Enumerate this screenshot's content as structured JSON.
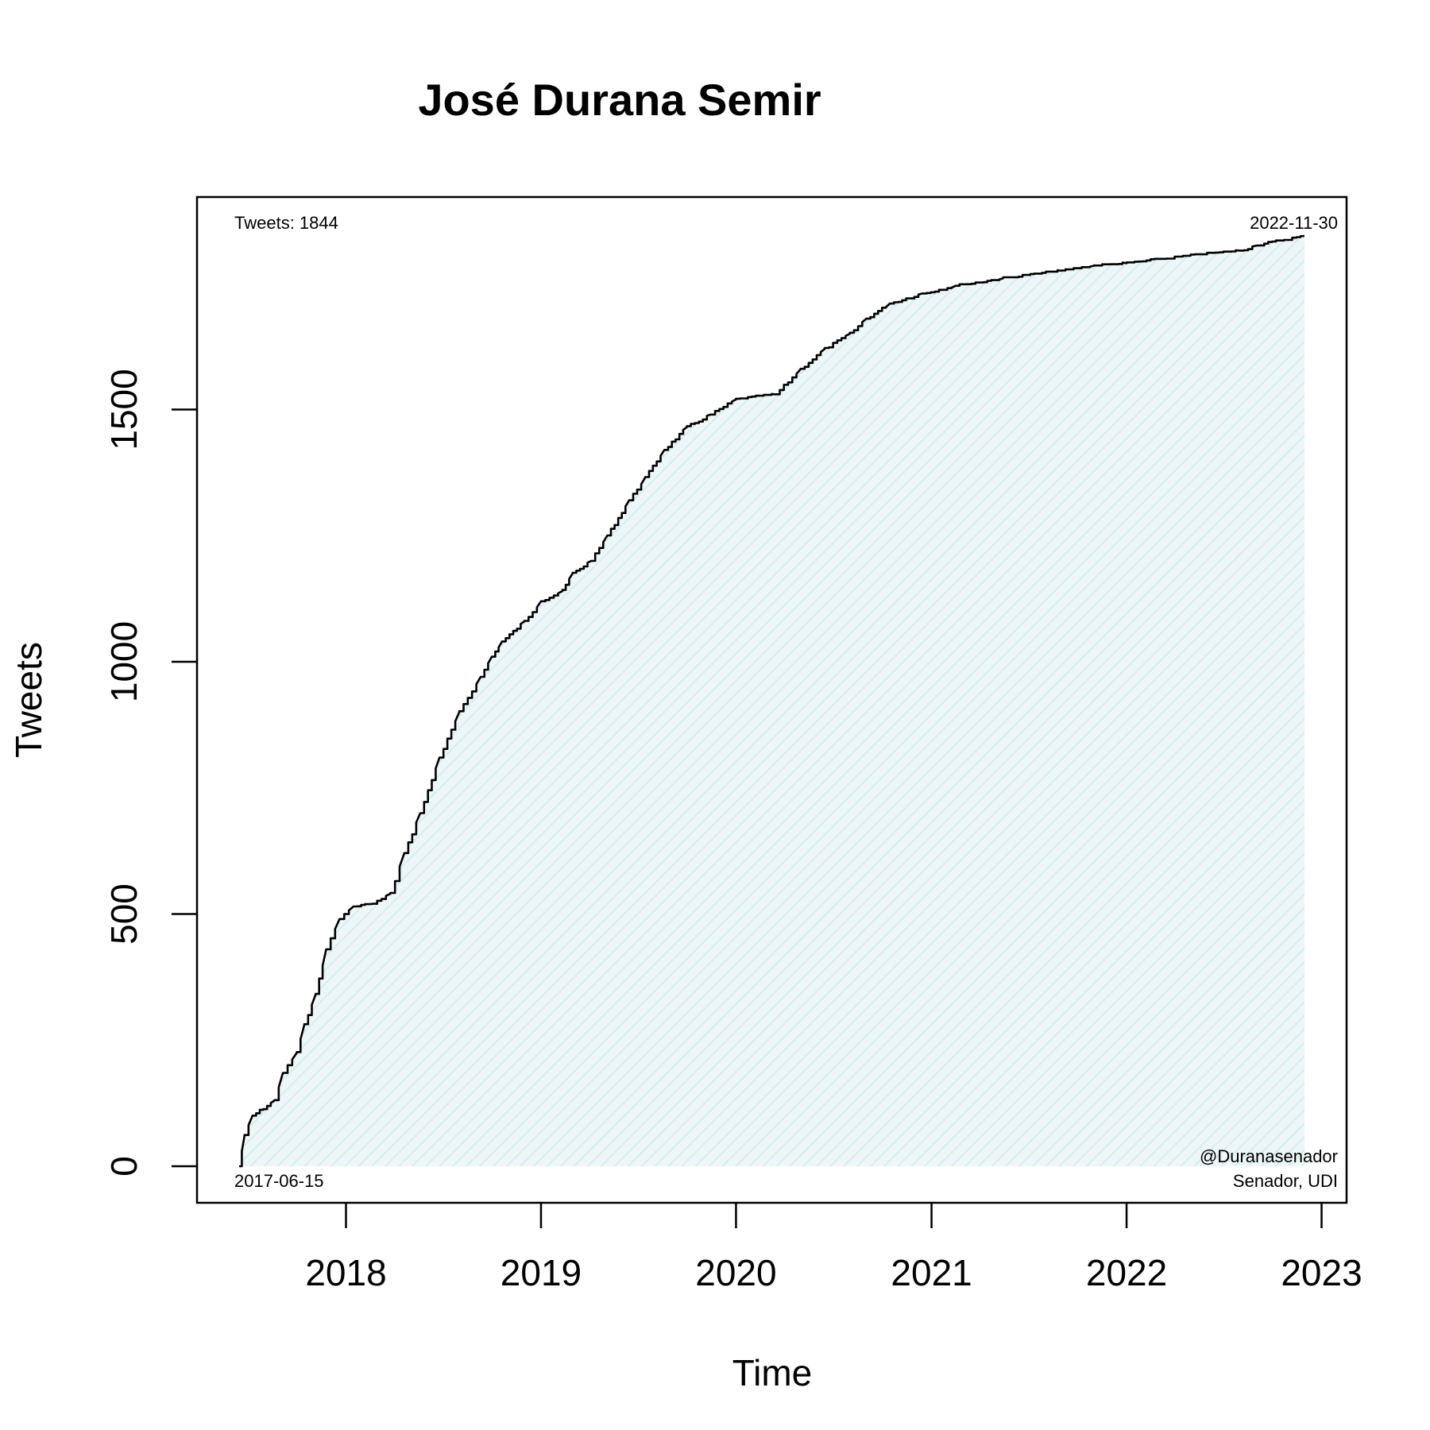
{
  "chart_data": {
    "type": "area",
    "title": "José Durana Semir",
    "xlabel": "Time",
    "ylabel": "Tweets",
    "x_ticks": [
      "2018",
      "2019",
      "2020",
      "2021",
      "2022",
      "2023"
    ],
    "y_ticks": [
      "0",
      "500",
      "1000",
      "1500"
    ],
    "xlim": [
      "2017-06-15",
      "2022-11-30"
    ],
    "ylim": [
      0,
      1844
    ],
    "grid": false,
    "annotations": {
      "top_left": "Tweets: 1844",
      "top_right": "2022-11-30",
      "bottom_left": "2017-06-15",
      "bottom_right_1": "@Duranasenador",
      "bottom_right_2": "Senador, UDI"
    },
    "colors": {
      "line": "#000000",
      "fill": "#e6f3f5"
    },
    "series": [
      {
        "points": [
          [
            "2017-06-15",
            0
          ],
          [
            "2017-06-25",
            60
          ],
          [
            "2017-07-10",
            100
          ],
          [
            "2017-08-20",
            130
          ],
          [
            "2017-09-05",
            185
          ],
          [
            "2017-10-01",
            225
          ],
          [
            "2017-10-15",
            280
          ],
          [
            "2017-11-05",
            340
          ],
          [
            "2017-11-25",
            430
          ],
          [
            "2017-12-20",
            490
          ],
          [
            "2018-01-15",
            515
          ],
          [
            "2018-02-20",
            520
          ],
          [
            "2018-03-25",
            540
          ],
          [
            "2018-04-20",
            620
          ],
          [
            "2018-05-20",
            700
          ],
          [
            "2018-06-25",
            810
          ],
          [
            "2018-08-01",
            900
          ],
          [
            "2018-09-10",
            970
          ],
          [
            "2018-10-01",
            1010
          ],
          [
            "2018-10-20",
            1040
          ],
          [
            "2018-12-01",
            1080
          ],
          [
            "2019-01-01",
            1120
          ],
          [
            "2019-02-10",
            1140
          ],
          [
            "2019-03-01",
            1175
          ],
          [
            "2019-04-05",
            1200
          ],
          [
            "2019-05-05",
            1250
          ],
          [
            "2019-06-15",
            1320
          ],
          [
            "2019-07-15",
            1365
          ],
          [
            "2019-08-20",
            1420
          ],
          [
            "2019-10-01",
            1465
          ],
          [
            "2019-11-15",
            1490
          ],
          [
            "2020-01-01",
            1520
          ],
          [
            "2020-03-15",
            1530
          ],
          [
            "2020-05-01",
            1580
          ],
          [
            "2020-06-15",
            1620
          ],
          [
            "2020-08-01",
            1650
          ],
          [
            "2020-09-01",
            1680
          ],
          [
            "2020-10-15",
            1710
          ],
          [
            "2020-12-15",
            1730
          ],
          [
            "2021-02-15",
            1745
          ],
          [
            "2021-05-15",
            1760
          ],
          [
            "2021-09-01",
            1775
          ],
          [
            "2021-11-01",
            1785
          ],
          [
            "2022-01-01",
            1790
          ],
          [
            "2022-05-01",
            1805
          ],
          [
            "2022-08-01",
            1815
          ],
          [
            "2022-09-01",
            1825
          ],
          [
            "2022-10-15",
            1835
          ],
          [
            "2022-11-30",
            1844
          ]
        ]
      }
    ]
  }
}
